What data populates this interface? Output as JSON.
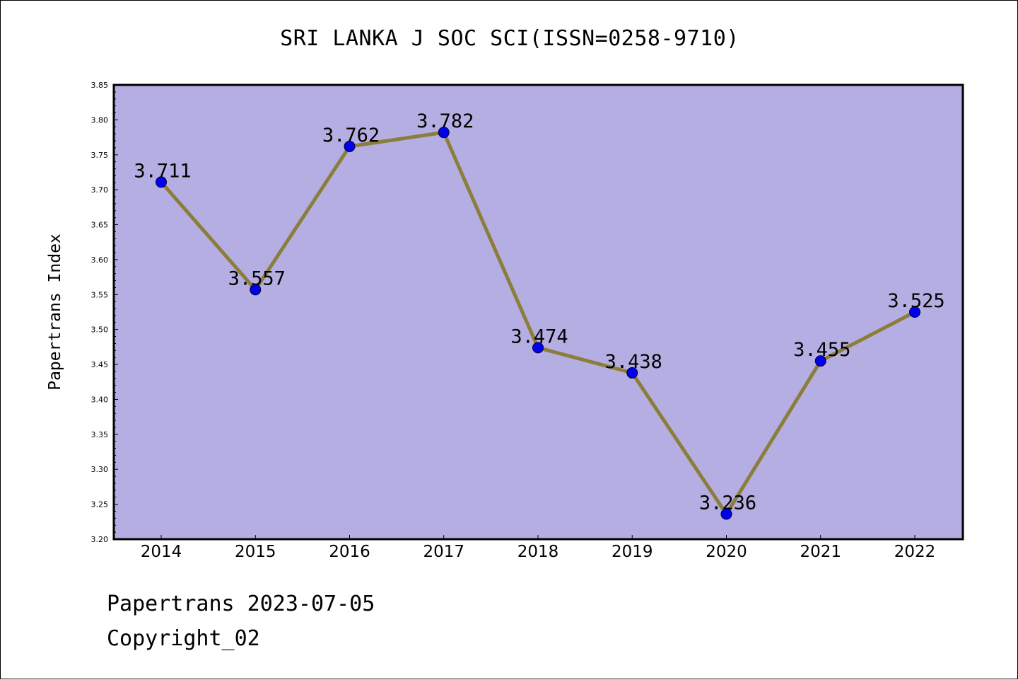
{
  "title": "SRI LANKA J SOC SCI(ISSN=0258-9710)",
  "footer": {
    "date_line": "Papertrans 2023-07-05",
    "copyright_line": "Copyright_02"
  },
  "colors": {
    "plot_background": "#b4aee2",
    "line": "#8b7d3a",
    "marker": "#0000ee",
    "axis": "#000000"
  },
  "chart_data": {
    "type": "line",
    "title": "SRI LANKA J SOC SCI(ISSN=0258-9710)",
    "xlabel": "",
    "ylabel": "Papertrans Index",
    "categories": [
      "2014",
      "2015",
      "2016",
      "2017",
      "2018",
      "2019",
      "2020",
      "2021",
      "2022"
    ],
    "values": [
      3.711,
      3.557,
      3.762,
      3.782,
      3.474,
      3.438,
      3.236,
      3.455,
      3.525
    ],
    "data_labels": [
      "3.711",
      "3.557",
      "3.762",
      "3.782",
      "3.474",
      "3.438",
      "3.236",
      "3.455",
      "3.525"
    ],
    "ylim": [
      3.2,
      3.85
    ],
    "yticks": [
      "3.20",
      "3.25",
      "3.30",
      "3.35",
      "3.40",
      "3.45",
      "3.50",
      "3.55",
      "3.60",
      "3.65",
      "3.70",
      "3.75",
      "3.80",
      "3.85"
    ],
    "grid": false,
    "legend": "none"
  }
}
